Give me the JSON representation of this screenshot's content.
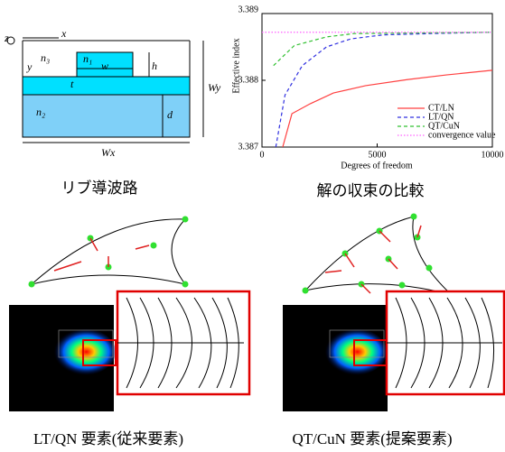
{
  "waveguide": {
    "labels": {
      "z": "z",
      "x": "x",
      "y": "y",
      "n3": "n₃",
      "n1": "n₁",
      "w": "w",
      "h": "h",
      "t": "t",
      "n2": "n₂",
      "d": "d",
      "wy": "Wy",
      "wx": "Wx"
    }
  },
  "chart_data": {
    "type": "line",
    "x_label": "Degrees of freedom",
    "y_label": "Effective index",
    "xlim": [
      0,
      10000
    ],
    "xticks": [
      0,
      5000,
      10000
    ],
    "ylim": [
      3.387,
      3.389
    ],
    "yticks": [
      3.387,
      3.388,
      3.389
    ],
    "legend": "lower right",
    "series": [
      {
        "name": "CT/LN",
        "color": "#ff4040",
        "dash": "solid",
        "x": [
          900,
          1300,
          2100,
          3100,
          4500,
          6300,
          8000,
          10000
        ],
        "values": [
          3.387,
          3.3875,
          3.38765,
          3.38781,
          3.38792,
          3.38801,
          3.38808,
          3.38815
        ]
      },
      {
        "name": "LT/QN",
        "color": "#3030e0",
        "dash": "dashed",
        "x": [
          600,
          1000,
          1750,
          2800,
          3850,
          5250,
          7350,
          10000
        ],
        "values": [
          3.387,
          3.38778,
          3.38822,
          3.3885,
          3.38862,
          3.38868,
          3.3887,
          3.38872
        ]
      },
      {
        "name": "QT/CuN",
        "color": "#30c030",
        "dash": "dashed",
        "x": [
          500,
          1400,
          2800,
          4000,
          10000
        ],
        "values": [
          3.38822,
          3.38852,
          3.38865,
          3.3887,
          3.38872
        ]
      },
      {
        "name": "convergence value",
        "color": "#ff60ff",
        "dash": "dotted",
        "x": [
          0,
          10000
        ],
        "values": [
          3.38872,
          3.38872
        ]
      }
    ]
  },
  "captions": [
    "リブ導波路",
    "解の収束の比較",
    "LT/QN 要素(従来要素)",
    "QT/CuN 要素(提案要素)"
  ]
}
